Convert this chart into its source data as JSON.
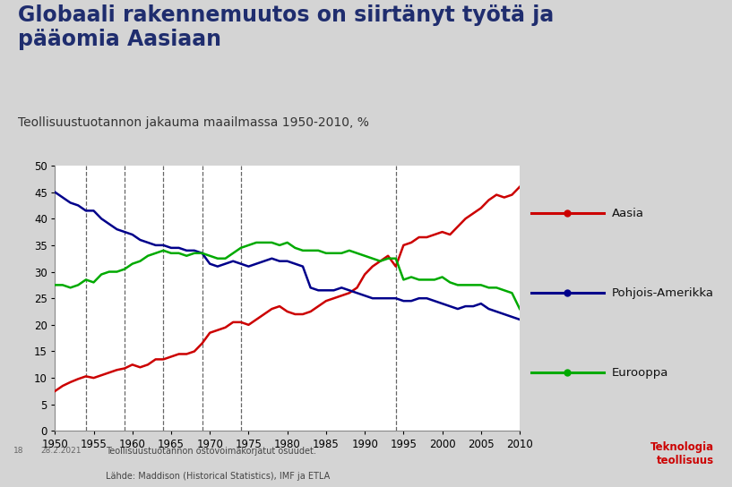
{
  "title_main": "Globaali rakennemuutos on siirtänyt työtä ja\npääomia Aasiaan",
  "title_sub": "Teollisuustuotannon jakauma maailmassa 1950-2010, %",
  "fig_bg": "#d4d4d4",
  "header_bg": "#ffffff",
  "plot_bg": "#ffffff",
  "ylim": [
    0,
    50
  ],
  "yticks": [
    0,
    5,
    10,
    15,
    20,
    25,
    30,
    35,
    40,
    45,
    50
  ],
  "xlim": [
    1950,
    2010
  ],
  "xticks": [
    1950,
    1955,
    1960,
    1965,
    1970,
    1975,
    1980,
    1985,
    1990,
    1995,
    2000,
    2005,
    2010
  ],
  "vlines": [
    1954,
    1959,
    1964,
    1969,
    1974,
    1994
  ],
  "footer_line1": "Teollisuustuotannon ostovoimakorjatut osuudet.",
  "footer_line2": "Lähde: Maddison (Historical Statistics), IMF ja ETLA",
  "logo_text": "Teknologia\nteollisuus",
  "logo_color": "#cc0000",
  "title_color": "#1f2d6e",
  "sub_color": "#333333",
  "series": {
    "Aasia": {
      "color": "#cc0000",
      "label": "Aasia",
      "years": [
        1950,
        1951,
        1952,
        1953,
        1954,
        1955,
        1956,
        1957,
        1958,
        1959,
        1960,
        1961,
        1962,
        1963,
        1964,
        1965,
        1966,
        1967,
        1968,
        1969,
        1970,
        1971,
        1972,
        1973,
        1974,
        1975,
        1976,
        1977,
        1978,
        1979,
        1980,
        1981,
        1982,
        1983,
        1984,
        1985,
        1986,
        1987,
        1988,
        1989,
        1990,
        1991,
        1992,
        1993,
        1994,
        1995,
        1996,
        1997,
        1998,
        1999,
        2000,
        2001,
        2002,
        2003,
        2004,
        2005,
        2006,
        2007,
        2008,
        2009,
        2010
      ],
      "values": [
        7.5,
        8.5,
        9.2,
        9.8,
        10.3,
        10.0,
        10.5,
        11.0,
        11.5,
        11.8,
        12.5,
        12.0,
        12.5,
        13.5,
        13.5,
        14.0,
        14.5,
        14.5,
        15.0,
        16.5,
        18.5,
        19.0,
        19.5,
        20.5,
        20.5,
        20.0,
        21.0,
        22.0,
        23.0,
        23.5,
        22.5,
        22.0,
        22.0,
        22.5,
        23.5,
        24.5,
        25.0,
        25.5,
        26.0,
        27.0,
        29.5,
        31.0,
        32.0,
        33.0,
        31.0,
        35.0,
        35.5,
        36.5,
        36.5,
        37.0,
        37.5,
        37.0,
        38.5,
        40.0,
        41.0,
        42.0,
        43.5,
        44.5,
        44.0,
        44.5,
        46.0
      ]
    },
    "Pohjois-Amerikka": {
      "color": "#00008b",
      "label": "Pohjois-Amerikka",
      "years": [
        1950,
        1951,
        1952,
        1953,
        1954,
        1955,
        1956,
        1957,
        1958,
        1959,
        1960,
        1961,
        1962,
        1963,
        1964,
        1965,
        1966,
        1967,
        1968,
        1969,
        1970,
        1971,
        1972,
        1973,
        1974,
        1975,
        1976,
        1977,
        1978,
        1979,
        1980,
        1981,
        1982,
        1983,
        1984,
        1985,
        1986,
        1987,
        1988,
        1989,
        1990,
        1991,
        1992,
        1993,
        1994,
        1995,
        1996,
        1997,
        1998,
        1999,
        2000,
        2001,
        2002,
        2003,
        2004,
        2005,
        2006,
        2007,
        2008,
        2009,
        2010
      ],
      "values": [
        45.0,
        44.0,
        43.0,
        42.5,
        41.5,
        41.5,
        40.0,
        39.0,
        38.0,
        37.5,
        37.0,
        36.0,
        35.5,
        35.0,
        35.0,
        34.5,
        34.5,
        34.0,
        34.0,
        33.5,
        31.5,
        31.0,
        31.5,
        32.0,
        31.5,
        31.0,
        31.5,
        32.0,
        32.5,
        32.0,
        32.0,
        31.5,
        31.0,
        27.0,
        26.5,
        26.5,
        26.5,
        27.0,
        26.5,
        26.0,
        25.5,
        25.0,
        25.0,
        25.0,
        25.0,
        24.5,
        24.5,
        25.0,
        25.0,
        24.5,
        24.0,
        23.5,
        23.0,
        23.5,
        23.5,
        24.0,
        23.0,
        22.5,
        22.0,
        21.5,
        21.0
      ]
    },
    "Eurooppa": {
      "color": "#00aa00",
      "label": "Eurooppa",
      "years": [
        1950,
        1951,
        1952,
        1953,
        1954,
        1955,
        1956,
        1957,
        1958,
        1959,
        1960,
        1961,
        1962,
        1963,
        1964,
        1965,
        1966,
        1967,
        1968,
        1969,
        1970,
        1971,
        1972,
        1973,
        1974,
        1975,
        1976,
        1977,
        1978,
        1979,
        1980,
        1981,
        1982,
        1983,
        1984,
        1985,
        1986,
        1987,
        1988,
        1989,
        1990,
        1991,
        1992,
        1993,
        1994,
        1995,
        1996,
        1997,
        1998,
        1999,
        2000,
        2001,
        2002,
        2003,
        2004,
        2005,
        2006,
        2007,
        2008,
        2009,
        2010
      ],
      "values": [
        27.5,
        27.5,
        27.0,
        27.5,
        28.5,
        28.0,
        29.5,
        30.0,
        30.0,
        30.5,
        31.5,
        32.0,
        33.0,
        33.5,
        34.0,
        33.5,
        33.5,
        33.0,
        33.5,
        33.5,
        33.0,
        32.5,
        32.5,
        33.5,
        34.5,
        35.0,
        35.5,
        35.5,
        35.5,
        35.0,
        35.5,
        34.5,
        34.0,
        34.0,
        34.0,
        33.5,
        33.5,
        33.5,
        34.0,
        33.5,
        33.0,
        32.5,
        32.0,
        32.5,
        32.5,
        28.5,
        29.0,
        28.5,
        28.5,
        28.5,
        29.0,
        28.0,
        27.5,
        27.5,
        27.5,
        27.5,
        27.0,
        27.0,
        26.5,
        26.0,
        23.0
      ]
    }
  }
}
